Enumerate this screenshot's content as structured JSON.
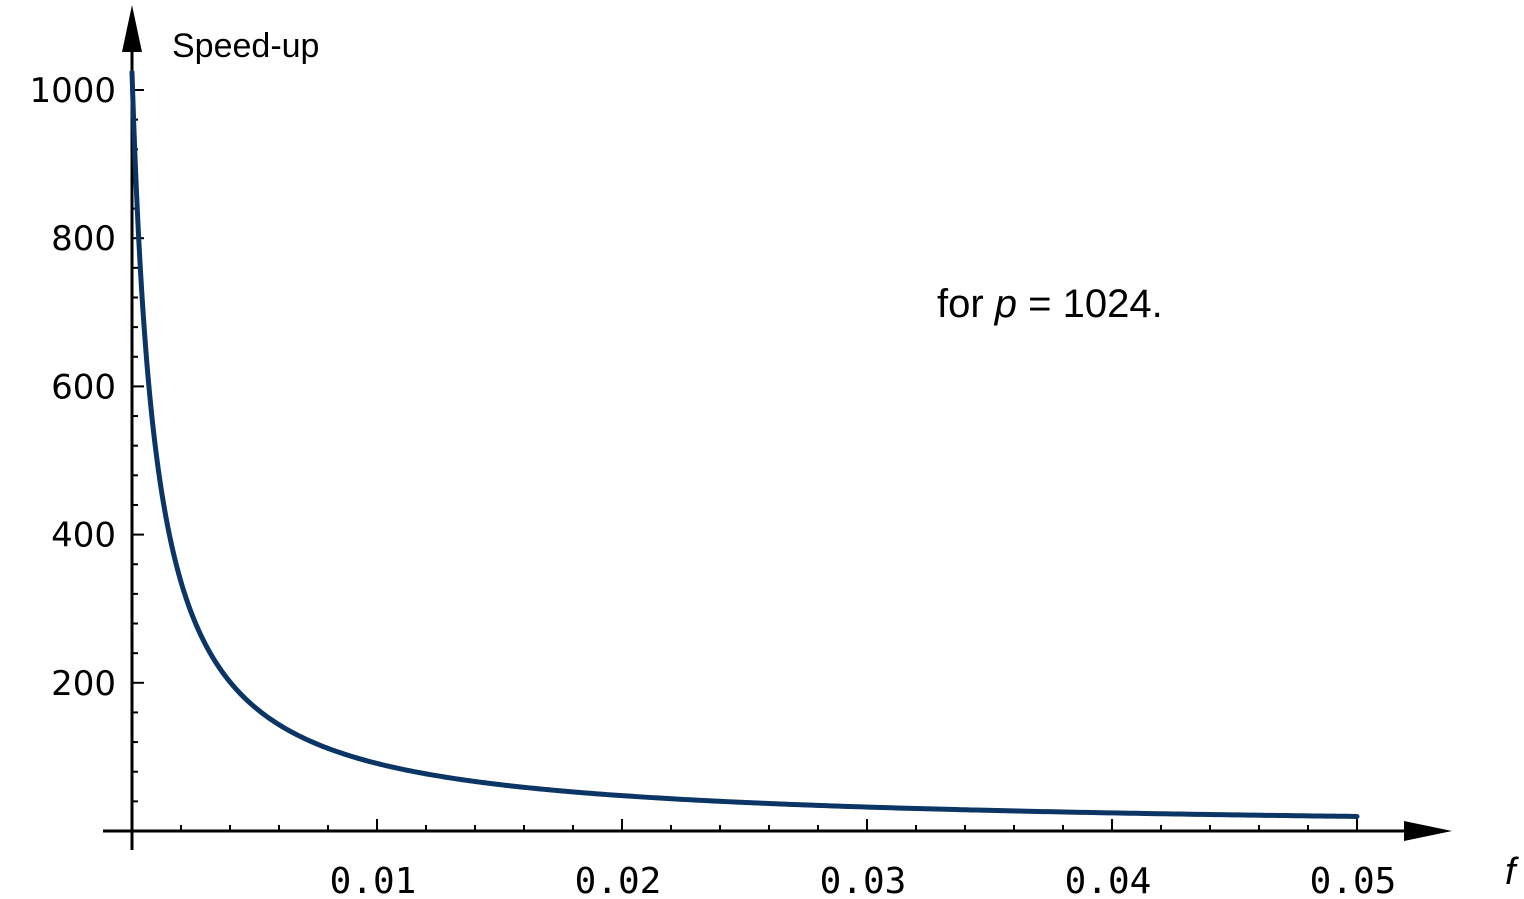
{
  "chart_data": {
    "type": "line",
    "title": "",
    "xlabel": "f",
    "ylabel": "Speed-up",
    "annotation": {
      "prefix": "for ",
      "var": "p",
      "suffix": " = 1024."
    },
    "xlim": [
      0,
      0.05
    ],
    "ylim": [
      0,
      1000
    ],
    "x_ticks": [
      0.01,
      0.02,
      0.03,
      0.04,
      0.05
    ],
    "x_tick_labels": [
      "0.01",
      "0.02",
      "0.03",
      "0.04",
      "0.05"
    ],
    "y_ticks": [
      200,
      400,
      600,
      800,
      1000
    ],
    "y_tick_labels": [
      "200",
      "400",
      "600",
      "800",
      "1000"
    ],
    "grid": false,
    "series": [
      {
        "color": "#0b3565",
        "x": [
          0,
          0.0005,
          0.001,
          0.0015,
          0.002,
          0.0025,
          0.003,
          0.004,
          0.005,
          0.006,
          0.008,
          0.01,
          0.0125,
          0.015,
          0.0175,
          0.02,
          0.025,
          0.03,
          0.035,
          0.04,
          0.045,
          0.05
        ],
        "y": [
          1024,
          678,
          507,
          405,
          337,
          288,
          252,
          201,
          168,
          143,
          112,
          91.3,
          73.9,
          62.1,
          53.6,
          47.1,
          38.0,
          31.9,
          27.5,
          24.2,
          21.6,
          19.5
        ]
      }
    ]
  }
}
